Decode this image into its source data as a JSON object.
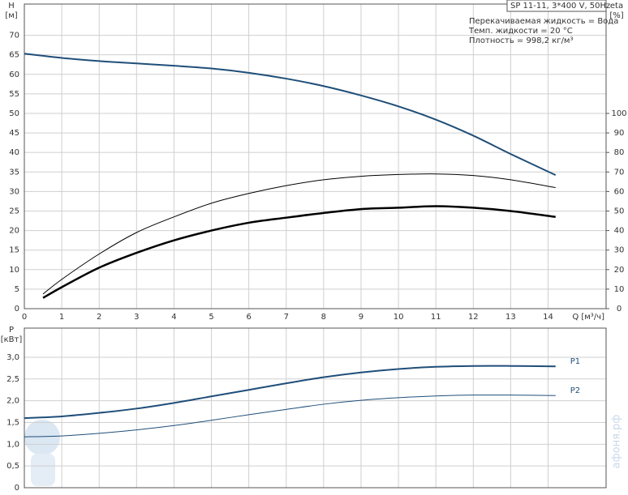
{
  "chart_data": [
    {
      "type": "line",
      "y_label": "H",
      "y_unit": "[м]",
      "y2_label": "eta",
      "y2_unit": "[%]",
      "x_label": "Q [м³/ч]",
      "annotations": [
        "SP 11-11, 3*400 V, 50Hz",
        "Перекачиваемая жидкость = Вода",
        "Темп. жидкости = 20 °C",
        "Плотность = 998,2 кг/м³"
      ],
      "xlim": [
        0,
        15.55
      ],
      "xticks": [
        0,
        1,
        2,
        3,
        4,
        5,
        6,
        7,
        8,
        9,
        10,
        11,
        12,
        13,
        14
      ],
      "ylim": [
        0,
        78
      ],
      "yticks": [
        0,
        5,
        10,
        15,
        20,
        25,
        30,
        35,
        40,
        45,
        50,
        55,
        60,
        65,
        70
      ],
      "y2lim": [
        0,
        156
      ],
      "y2ticks": [
        0,
        10,
        20,
        30,
        40,
        50,
        60,
        70,
        80,
        90,
        100
      ],
      "grid": true,
      "series": [
        {
          "color": "#1f4e79",
          "width": 2,
          "x": [
            0,
            1,
            2,
            3,
            4,
            5,
            6,
            7,
            8,
            9,
            10,
            11,
            12,
            13,
            14.2
          ],
          "values": [
            65.3,
            64.2,
            63.4,
            62.8,
            62.2,
            61.5,
            60.4,
            58.9,
            57,
            54.6,
            51.8,
            48.4,
            44.3,
            39.6,
            34.2
          ]
        },
        {
          "color": "#000000",
          "width": 1,
          "axis": "y2",
          "x": [
            0.5,
            1,
            2,
            3,
            4,
            5,
            6,
            7,
            8,
            9,
            10,
            11,
            12,
            13,
            14.2
          ],
          "values": [
            7.5,
            15,
            28,
            39,
            47,
            54,
            59,
            63,
            66,
            67.8,
            68.7,
            69,
            68.2,
            66,
            62
          ]
        },
        {
          "color": "#000000",
          "width": 2.5,
          "axis": "y2",
          "x": [
            0.5,
            1,
            2,
            3,
            4,
            5,
            6,
            7,
            8,
            9,
            10,
            11,
            12,
            13,
            14.2
          ],
          "values": [
            5.5,
            11,
            21,
            28.6,
            35,
            40,
            44,
            46.6,
            49,
            51,
            51.7,
            52.5,
            51.7,
            50,
            47
          ]
        }
      ]
    },
    {
      "type": "line",
      "y_label": "P",
      "y_unit": "[кВт]",
      "watermark": "афоня.рф",
      "xlim": [
        0,
        15.55
      ],
      "xticks": [
        0,
        1,
        2,
        3,
        4,
        5,
        6,
        7,
        8,
        9,
        10,
        11,
        12,
        13,
        14
      ],
      "ylim": [
        0,
        3.67
      ],
      "yticks": [
        0,
        {
          "value": 0.5,
          "label": "0,5"
        },
        {
          "value": 1,
          "label": "1,0"
        },
        {
          "value": 1.5,
          "label": "1,5"
        },
        {
          "value": 2,
          "label": "2,0"
        },
        {
          "value": 2.5,
          "label": "2,5"
        },
        {
          "value": 3,
          "label": "3,0"
        }
      ],
      "grid": true,
      "series": [
        {
          "name": "P1",
          "color": "#1f4e79",
          "width": 2,
          "x": [
            0,
            1,
            2,
            3,
            4,
            5,
            6,
            7,
            8,
            9,
            10,
            11,
            12,
            13,
            14.2
          ],
          "values": [
            1.6,
            1.64,
            1.72,
            1.82,
            1.95,
            2.1,
            2.25,
            2.4,
            2.54,
            2.65,
            2.73,
            2.78,
            2.8,
            2.8,
            2.79
          ]
        },
        {
          "name": "P2",
          "color": "#1f4e79",
          "width": 1,
          "x": [
            0,
            1,
            2,
            3,
            4,
            5,
            6,
            7,
            8,
            9,
            10,
            11,
            12,
            13,
            14.2
          ],
          "values": [
            1.17,
            1.19,
            1.25,
            1.33,
            1.43,
            1.55,
            1.68,
            1.8,
            1.92,
            2.01,
            2.07,
            2.11,
            2.13,
            2.13,
            2.12
          ]
        }
      ]
    }
  ]
}
